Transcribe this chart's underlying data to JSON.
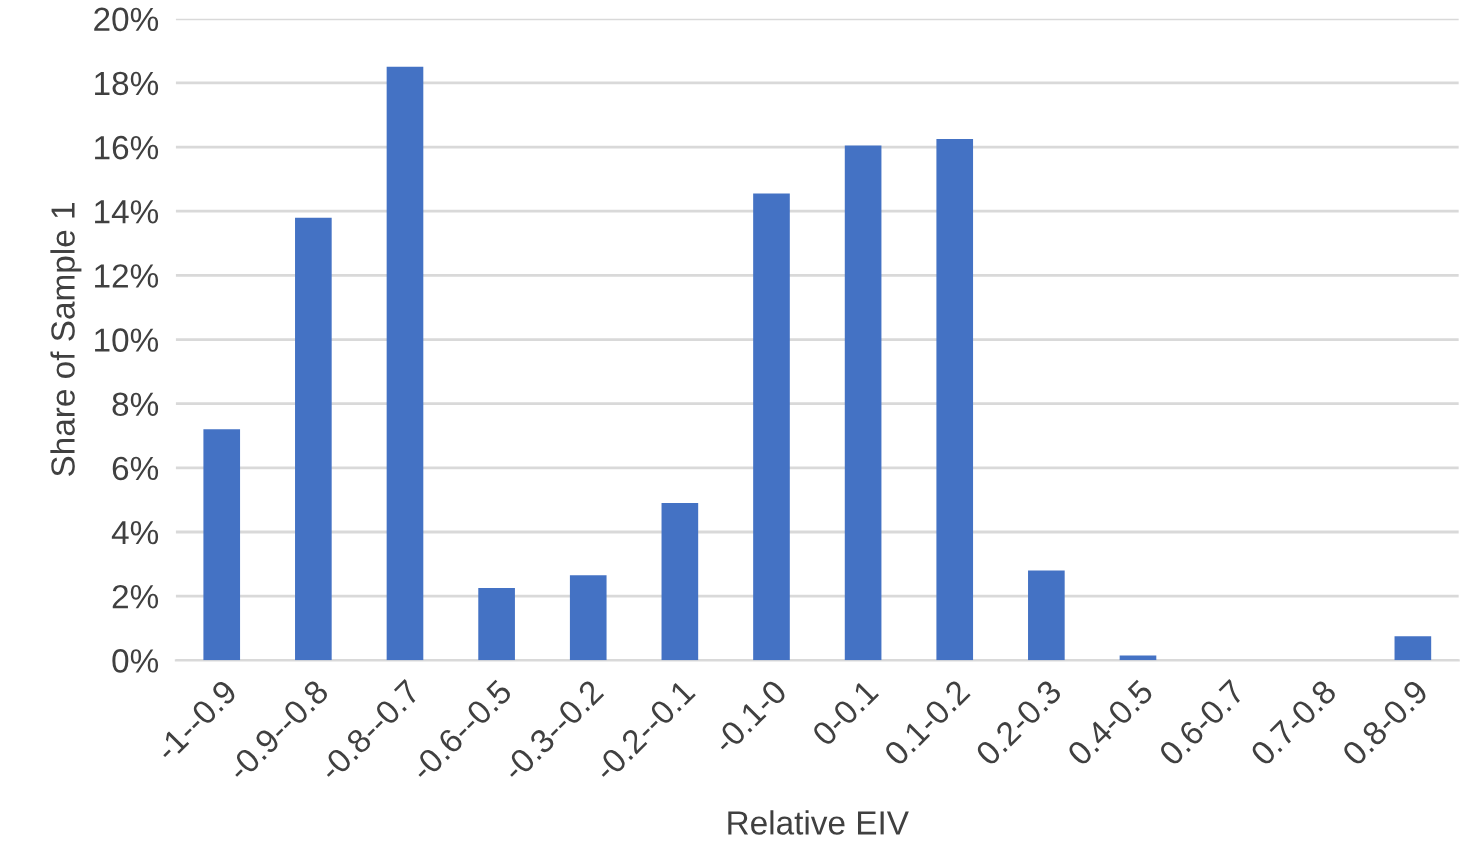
{
  "chart_data": {
    "type": "bar",
    "xlabel": "Relative EIV",
    "ylabel": "Share of Sample 1",
    "categories": [
      "-1--0.9",
      "-0.9--0.8",
      "-0.8--0.7",
      "-0.6--0.5",
      "-0.3--0.2",
      "-0.2--0.1",
      "-0.1-0",
      "0-0.1",
      "0.1-0.2",
      "0.2-0.3",
      "0.4-0.5",
      "0.6-0.7",
      "0.7-0.8",
      "0.8-0.9"
    ],
    "values": [
      7.2,
      13.8,
      18.5,
      2.25,
      2.65,
      4.9,
      14.55,
      16.05,
      16.25,
      2.8,
      0.15,
      0,
      0,
      0.75
    ],
    "color": "#4472c4",
    "ylim": [
      0,
      20
    ],
    "yticks": [
      {
        "value": 0,
        "label": "0%"
      },
      {
        "value": 2,
        "label": "2%"
      },
      {
        "value": 4,
        "label": "4%"
      },
      {
        "value": 6,
        "label": "6%"
      },
      {
        "value": 8,
        "label": "8%"
      },
      {
        "value": 10,
        "label": "10%"
      },
      {
        "value": 12,
        "label": "12%"
      },
      {
        "value": 14,
        "label": "14%"
      },
      {
        "value": 16,
        "label": "16%"
      },
      {
        "value": 18,
        "label": "18%"
      },
      {
        "value": 20,
        "label": "20%"
      }
    ],
    "grid": "y"
  }
}
